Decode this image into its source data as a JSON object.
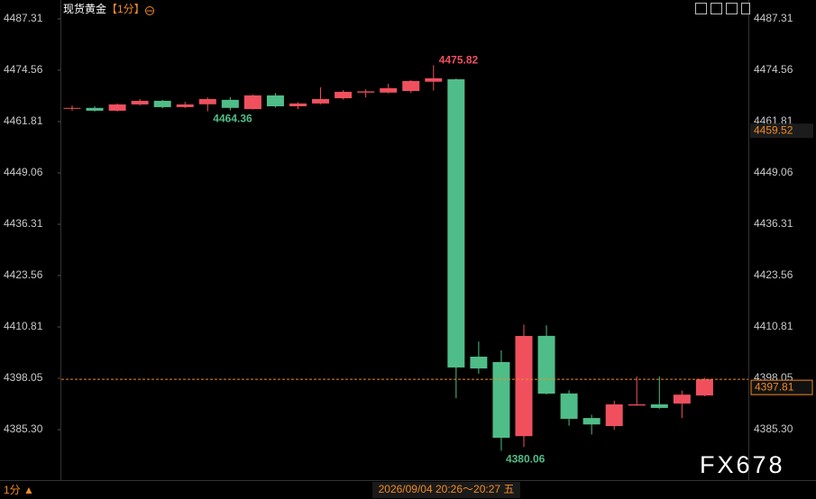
{
  "chart_data": {
    "type": "candlestick",
    "title": "现货黄金",
    "period": "【1分】",
    "open": [
      4465.0,
      4465.2,
      4464.5,
      4466.06,
      4466.96,
      4465.4,
      4466.1,
      4467.2,
      4464.9,
      4468.3,
      4465.6,
      4466.3,
      4467.6,
      4469.0,
      4469.0,
      4469.4,
      4471.7,
      4472.3,
      4403.43,
      4402.09,
      4383.7,
      4408.6,
      4394.3,
      4388.2,
      4386.2,
      4391.3,
      4391.6,
      4391.8,
      4393.8
    ],
    "high": [
      4465.8,
      4465.6,
      4466.3,
      4467.4,
      4467.2,
      4466.7,
      4467.8,
      4467.9,
      4468.5,
      4468.9,
      4466.6,
      4470.31,
      4469.6,
      4469.8,
      4471.2,
      4472.1,
      4475.82,
      4472.5,
      4407.2,
      4405.0,
      4411.4,
      4411.2,
      4395.1,
      4389.0,
      4392.5,
      4398.51,
      4398.5,
      4395.0,
      4398.2
    ],
    "low": [
      4464.5,
      4464.3,
      4464.3,
      4465.8,
      4465.1,
      4465.2,
      4464.36,
      4464.6,
      4464.8,
      4465.3,
      4464.9,
      4466.1,
      4467.3,
      4467.8,
      4468.8,
      4468.9,
      4469.5,
      4393.14,
      4399.2,
      4380.06,
      4381.0,
      4394.0,
      4386.3,
      4384.1,
      4385.3,
      4391.3,
      4390.5,
      4388.2,
      4393.6
    ],
    "close": [
      4465.2,
      4464.5,
      4466.06,
      4466.96,
      4465.39,
      4466.06,
      4467.4,
      4465.2,
      4468.3,
      4465.6,
      4466.3,
      4467.4,
      4469.19,
      4469.3,
      4470.09,
      4471.88,
      4472.55,
      4400.75,
      4400.5,
      4383.3,
      4408.57,
      4394.26,
      4388.0,
      4386.6,
      4391.58,
      4391.6,
      4390.7,
      4394.0,
      4397.81
    ],
    "up_color": "#f0505e",
    "down_color": "#4fbd87",
    "ylim": [
      4373.46,
      4490.2
    ],
    "yticks": [
      4487.31,
      4474.56,
      4461.81,
      4449.06,
      4436.31,
      4423.56,
      4410.81,
      4398.05,
      {
        "value": 4385.3,
        "label": "4385.30"
      }
    ],
    "reference_price": 4459.52,
    "period_selector": "1分 ▲",
    "crosshair_time": "2026/09/04 20:26～20:27 五",
    "watermark": "FX678"
  }
}
